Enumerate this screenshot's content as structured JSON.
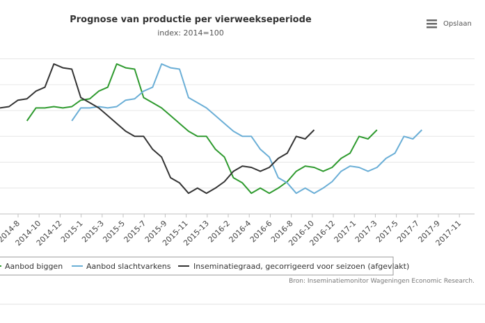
{
  "export_button": {
    "label": "Opslaan",
    "icon": "hamburger-menu-icon"
  },
  "credits": "Bron: Inseminatiemonitor Wageningen Economic Research.",
  "chart_data": {
    "type": "line",
    "title": "Prognose van productie per vierweekseperiode",
    "subtitle": "index: 2014=100",
    "xlabel": "",
    "ylabel": "",
    "grid": true,
    "legend": "bottom",
    "x_tick_labels": [
      "2014-8",
      "2014-10",
      "2014-12",
      "2015-1",
      "2015-3",
      "2015-5",
      "2015-7",
      "2015-9",
      "2015-11",
      "2015-13",
      "2016-2",
      "2016-4",
      "2016-6",
      "2016-8",
      "2016-10",
      "2016-12",
      "2017-1",
      "2017-3",
      "2017-5",
      "2017-7",
      "2017-9",
      "2017-11"
    ],
    "series": [
      {
        "name": "Aanbod biggen",
        "color": "#2e9a2e",
        "values": [
          null,
          null,
          null,
          96,
          101,
          101,
          101.5,
          101,
          101.5,
          104,
          104.5,
          107.5,
          109,
          118,
          116.5,
          116,
          105,
          103,
          101,
          98,
          95,
          92,
          90,
          90,
          85,
          82,
          74,
          72,
          68,
          70,
          68,
          70,
          72.5,
          76.5,
          78.5,
          78,
          76.5,
          78,
          81.5,
          83.5,
          90,
          89,
          92.5,
          null,
          null,
          null,
          null,
          null,
          null,
          null,
          null,
          null,
          null
        ]
      },
      {
        "name": "Aanbod slachtvarkens",
        "color": "#6aaed6",
        "values": [
          null,
          null,
          null,
          null,
          null,
          null,
          null,
          null,
          96,
          101,
          101,
          101.5,
          101,
          101.5,
          104,
          104.5,
          107.5,
          109,
          118,
          116.5,
          116,
          105,
          103,
          101,
          98,
          95,
          92,
          90,
          90,
          85,
          82,
          74,
          72,
          68,
          70,
          68,
          70,
          72.5,
          76.5,
          78.5,
          78,
          76.5,
          78,
          81.5,
          83.5,
          90,
          89,
          92.5,
          null,
          null,
          null,
          null,
          null
        ]
      },
      {
        "name": "Inseminatiegraad, gecorrigeerd voor seizoen (afgevlakt)",
        "color": "#333333",
        "values": [
          101,
          101.5,
          104,
          104.5,
          107.5,
          109,
          118,
          116.5,
          116,
          105,
          103,
          101,
          98,
          95,
          92,
          90,
          90,
          85,
          82,
          74,
          72,
          68,
          70,
          68,
          70,
          72.5,
          76.5,
          78.5,
          78,
          76.5,
          78,
          81.5,
          83.5,
          90,
          89,
          92.5,
          null,
          null,
          null,
          null,
          null,
          null,
          null,
          null,
          null,
          null,
          null,
          null,
          null,
          null,
          null,
          null,
          null
        ]
      }
    ]
  }
}
